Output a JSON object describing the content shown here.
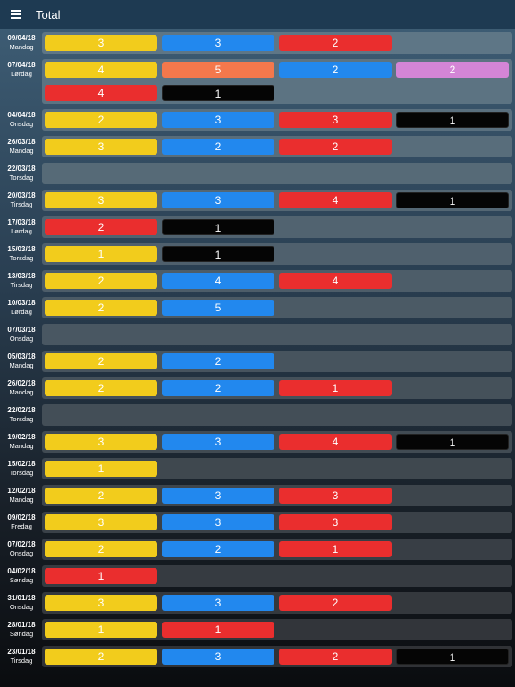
{
  "header": {
    "title": "Total",
    "menu_icon": "hamburger-menu-icon"
  },
  "colors": {
    "yellow": "#f2cc1c",
    "blue": "#2288ee",
    "red": "#ea2e2e",
    "orange": "#f4784c",
    "violet": "#d485d6",
    "black": "#050505"
  },
  "rows": [
    {
      "date": "09/04/18",
      "day": "Mandag",
      "chips": [
        {
          "color": "yellow",
          "value": "3"
        },
        {
          "color": "blue",
          "value": "3"
        },
        {
          "color": "red",
          "value": "2"
        }
      ]
    },
    {
      "date": "07/04/18",
      "day": "Lørdag",
      "chips": [
        {
          "color": "yellow",
          "value": "4"
        },
        {
          "color": "orange",
          "value": "5"
        },
        {
          "color": "blue",
          "value": "2"
        },
        {
          "color": "violet",
          "value": "2"
        },
        {
          "color": "red",
          "value": "4"
        },
        {
          "color": "black",
          "value": "1"
        }
      ]
    },
    {
      "date": "04/04/18",
      "day": "Onsdag",
      "chips": [
        {
          "color": "yellow",
          "value": "2"
        },
        {
          "color": "blue",
          "value": "3"
        },
        {
          "color": "red",
          "value": "3"
        },
        {
          "color": "black",
          "value": "1"
        }
      ]
    },
    {
      "date": "26/03/18",
      "day": "Mandag",
      "chips": [
        {
          "color": "yellow",
          "value": "3"
        },
        {
          "color": "blue",
          "value": "2"
        },
        {
          "color": "red",
          "value": "2"
        }
      ]
    },
    {
      "date": "22/03/18",
      "day": "Torsdag",
      "chips": []
    },
    {
      "date": "20/03/18",
      "day": "Tirsdag",
      "chips": [
        {
          "color": "yellow",
          "value": "3"
        },
        {
          "color": "blue",
          "value": "3"
        },
        {
          "color": "red",
          "value": "4"
        },
        {
          "color": "black",
          "value": "1"
        }
      ]
    },
    {
      "date": "17/03/18",
      "day": "Lørdag",
      "chips": [
        {
          "color": "red",
          "value": "2"
        },
        {
          "color": "black",
          "value": "1"
        }
      ]
    },
    {
      "date": "15/03/18",
      "day": "Torsdag",
      "chips": [
        {
          "color": "yellow",
          "value": "1"
        },
        {
          "color": "black",
          "value": "1"
        }
      ]
    },
    {
      "date": "13/03/18",
      "day": "Tirsdag",
      "chips": [
        {
          "color": "yellow",
          "value": "2"
        },
        {
          "color": "blue",
          "value": "4"
        },
        {
          "color": "red",
          "value": "4"
        }
      ]
    },
    {
      "date": "10/03/18",
      "day": "Lørdag",
      "chips": [
        {
          "color": "yellow",
          "value": "2"
        },
        {
          "color": "blue",
          "value": "5"
        }
      ]
    },
    {
      "date": "07/03/18",
      "day": "Onsdag",
      "chips": []
    },
    {
      "date": "05/03/18",
      "day": "Mandag",
      "chips": [
        {
          "color": "yellow",
          "value": "2"
        },
        {
          "color": "blue",
          "value": "2"
        }
      ]
    },
    {
      "date": "26/02/18",
      "day": "Mandag",
      "chips": [
        {
          "color": "yellow",
          "value": "2"
        },
        {
          "color": "blue",
          "value": "2"
        },
        {
          "color": "red",
          "value": "1"
        }
      ]
    },
    {
      "date": "22/02/18",
      "day": "Torsdag",
      "chips": []
    },
    {
      "date": "19/02/18",
      "day": "Mandag",
      "chips": [
        {
          "color": "yellow",
          "value": "3"
        },
        {
          "color": "blue",
          "value": "3"
        },
        {
          "color": "red",
          "value": "4"
        },
        {
          "color": "black",
          "value": "1"
        }
      ]
    },
    {
      "date": "15/02/18",
      "day": "Torsdag",
      "chips": [
        {
          "color": "yellow",
          "value": "1"
        }
      ]
    },
    {
      "date": "12/02/18",
      "day": "Mandag",
      "chips": [
        {
          "color": "yellow",
          "value": "2"
        },
        {
          "color": "blue",
          "value": "3"
        },
        {
          "color": "red",
          "value": "3"
        }
      ]
    },
    {
      "date": "09/02/18",
      "day": "Fredag",
      "chips": [
        {
          "color": "yellow",
          "value": "3"
        },
        {
          "color": "blue",
          "value": "3"
        },
        {
          "color": "red",
          "value": "3"
        }
      ]
    },
    {
      "date": "07/02/18",
      "day": "Onsdag",
      "chips": [
        {
          "color": "yellow",
          "value": "2"
        },
        {
          "color": "blue",
          "value": "2"
        },
        {
          "color": "red",
          "value": "1"
        }
      ]
    },
    {
      "date": "04/02/18",
      "day": "Søndag",
      "chips": [
        {
          "color": "red",
          "value": "1"
        }
      ]
    },
    {
      "date": "31/01/18",
      "day": "Onsdag",
      "chips": [
        {
          "color": "yellow",
          "value": "3"
        },
        {
          "color": "blue",
          "value": "3"
        },
        {
          "color": "red",
          "value": "2"
        }
      ]
    },
    {
      "date": "28/01/18",
      "day": "Søndag",
      "chips": [
        {
          "color": "yellow",
          "value": "1"
        },
        {
          "color": "red",
          "value": "1"
        }
      ]
    },
    {
      "date": "23/01/18",
      "day": "Tirsdag",
      "chips": [
        {
          "color": "yellow",
          "value": "2"
        },
        {
          "color": "blue",
          "value": "3"
        },
        {
          "color": "red",
          "value": "2"
        },
        {
          "color": "black",
          "value": "1"
        }
      ]
    }
  ]
}
